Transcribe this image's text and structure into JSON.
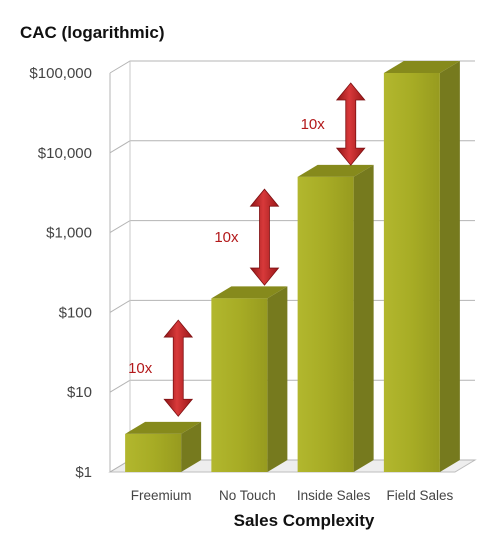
{
  "chart_data": {
    "type": "bar",
    "title": "",
    "ylabel": "CAC (logarithmic)",
    "xlabel": "Sales Complexity",
    "yscale": "log",
    "ylim": [
      1,
      100000
    ],
    "yticks": [
      "$1",
      "$10",
      "$100",
      "$1,000",
      "$10,000",
      "$100,000"
    ],
    "categories": [
      "Freemium",
      "No Touch",
      "Inside Sales",
      "Field Sales"
    ],
    "values": [
      3,
      150,
      5000,
      100000
    ],
    "bar_color": "#a3a828",
    "bar_top_color": "#868a1c",
    "bar_side_color": "#767a1e",
    "arrow_color": "#c0282a",
    "annotations": [
      {
        "text": "10x",
        "from": 5,
        "to": 80
      },
      {
        "text": "10x",
        "from": 220,
        "to": 3500
      },
      {
        "text": "10x",
        "from": 7000,
        "to": 75000
      }
    ],
    "grid": true,
    "style": "3d-column"
  }
}
